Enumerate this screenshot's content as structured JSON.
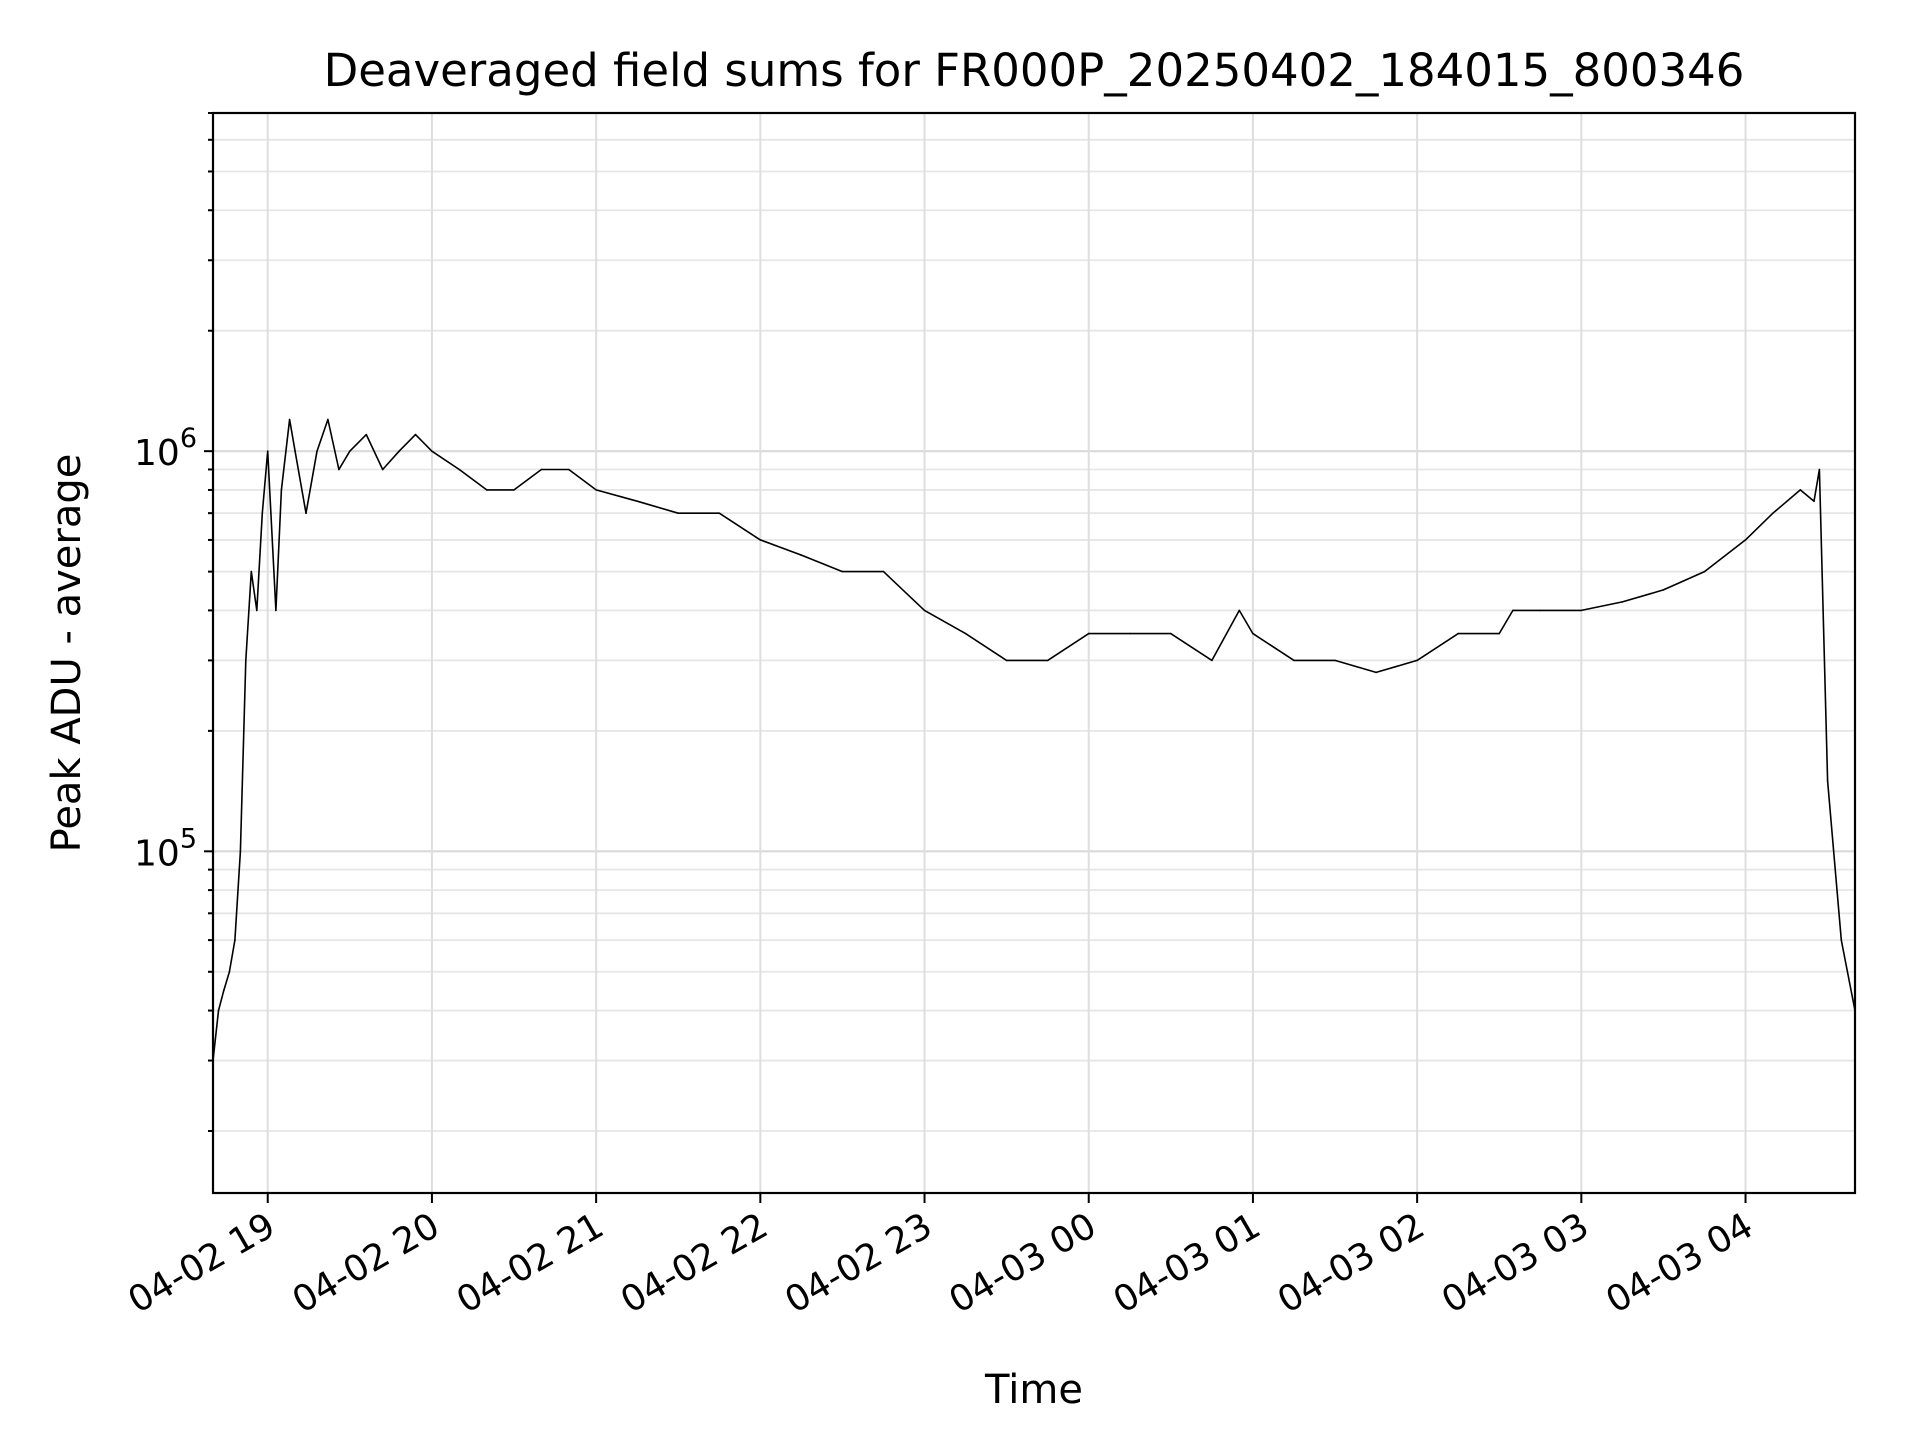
{
  "chart_data": {
    "type": "line",
    "title": "Deaveraged field sums for FR000P_20250402_184015_800346",
    "xlabel": "Time",
    "ylabel": "Peak ADU - average",
    "yscale": "log",
    "ylim": [
      14000,
      7000000
    ],
    "xlim": [
      "2025-04-02 18:40",
      "2025-04-03 04:40"
    ],
    "x_ticks": [
      {
        "value": "2025-04-02 19:00",
        "label": "04-02 19"
      },
      {
        "value": "2025-04-02 20:00",
        "label": "04-02 20"
      },
      {
        "value": "2025-04-02 21:00",
        "label": "04-02 21"
      },
      {
        "value": "2025-04-02 22:00",
        "label": "04-02 22"
      },
      {
        "value": "2025-04-02 23:00",
        "label": "04-02 23"
      },
      {
        "value": "2025-04-03 00:00",
        "label": "04-03 00"
      },
      {
        "value": "2025-04-03 01:00",
        "label": "04-03 01"
      },
      {
        "value": "2025-04-03 02:00",
        "label": "04-03 02"
      },
      {
        "value": "2025-04-03 03:00",
        "label": "04-03 03"
      },
      {
        "value": "2025-04-03 04:00",
        "label": "04-03 04"
      }
    ],
    "y_ticks": [
      {
        "value": 100000,
        "base": "10",
        "exp": "5"
      },
      {
        "value": 1000000,
        "base": "10",
        "exp": "6"
      }
    ],
    "grid": true,
    "line_color": "#000000",
    "series": [
      {
        "x": [
          "2025-04-02 18:40",
          "2025-04-02 18:42",
          "2025-04-02 18:44",
          "2025-04-02 18:46",
          "2025-04-02 18:48",
          "2025-04-02 18:50",
          "2025-04-02 18:52",
          "2025-04-02 18:54",
          "2025-04-02 18:56",
          "2025-04-02 18:58",
          "2025-04-02 19:00",
          "2025-04-02 19:03",
          "2025-04-02 19:05",
          "2025-04-02 19:08",
          "2025-04-02 19:10",
          "2025-04-02 19:14",
          "2025-04-02 19:18",
          "2025-04-02 19:22",
          "2025-04-02 19:26",
          "2025-04-02 19:30",
          "2025-04-02 19:36",
          "2025-04-02 19:42",
          "2025-04-02 19:48",
          "2025-04-02 19:54",
          "2025-04-02 20:00",
          "2025-04-02 20:10",
          "2025-04-02 20:20",
          "2025-04-02 20:30",
          "2025-04-02 20:40",
          "2025-04-02 20:50",
          "2025-04-02 21:00",
          "2025-04-02 21:15",
          "2025-04-02 21:30",
          "2025-04-02 21:45",
          "2025-04-02 22:00",
          "2025-04-02 22:15",
          "2025-04-02 22:30",
          "2025-04-02 22:45",
          "2025-04-02 23:00",
          "2025-04-02 23:15",
          "2025-04-02 23:30",
          "2025-04-02 23:45",
          "2025-04-03 00:00",
          "2025-04-03 00:15",
          "2025-04-03 00:30",
          "2025-04-03 00:45",
          "2025-04-03 00:55",
          "2025-04-03 01:00",
          "2025-04-03 01:15",
          "2025-04-03 01:30",
          "2025-04-03 01:45",
          "2025-04-03 02:00",
          "2025-04-03 02:15",
          "2025-04-03 02:30",
          "2025-04-03 02:35",
          "2025-04-03 02:45",
          "2025-04-03 03:00",
          "2025-04-03 03:15",
          "2025-04-03 03:30",
          "2025-04-03 03:45",
          "2025-04-03 04:00",
          "2025-04-03 04:10",
          "2025-04-03 04:20",
          "2025-04-03 04:25",
          "2025-04-03 04:27",
          "2025-04-03 04:30",
          "2025-04-03 04:35",
          "2025-04-03 04:40"
        ],
        "y": [
          30000,
          40000,
          45000,
          50000,
          60000,
          100000,
          300000,
          500000,
          400000,
          700000,
          1000000,
          400000,
          800000,
          1200000,
          1000000,
          700000,
          1000000,
          1200000,
          900000,
          1000000,
          1100000,
          900000,
          1000000,
          1100000,
          1000000,
          900000,
          800000,
          800000,
          900000,
          900000,
          800000,
          750000,
          700000,
          700000,
          600000,
          550000,
          500000,
          500000,
          400000,
          350000,
          300000,
          300000,
          350000,
          350000,
          350000,
          300000,
          400000,
          350000,
          300000,
          300000,
          280000,
          300000,
          350000,
          350000,
          400000,
          400000,
          400000,
          420000,
          450000,
          500000,
          600000,
          700000,
          800000,
          750000,
          900000,
          150000,
          60000,
          40000
        ]
      }
    ]
  }
}
